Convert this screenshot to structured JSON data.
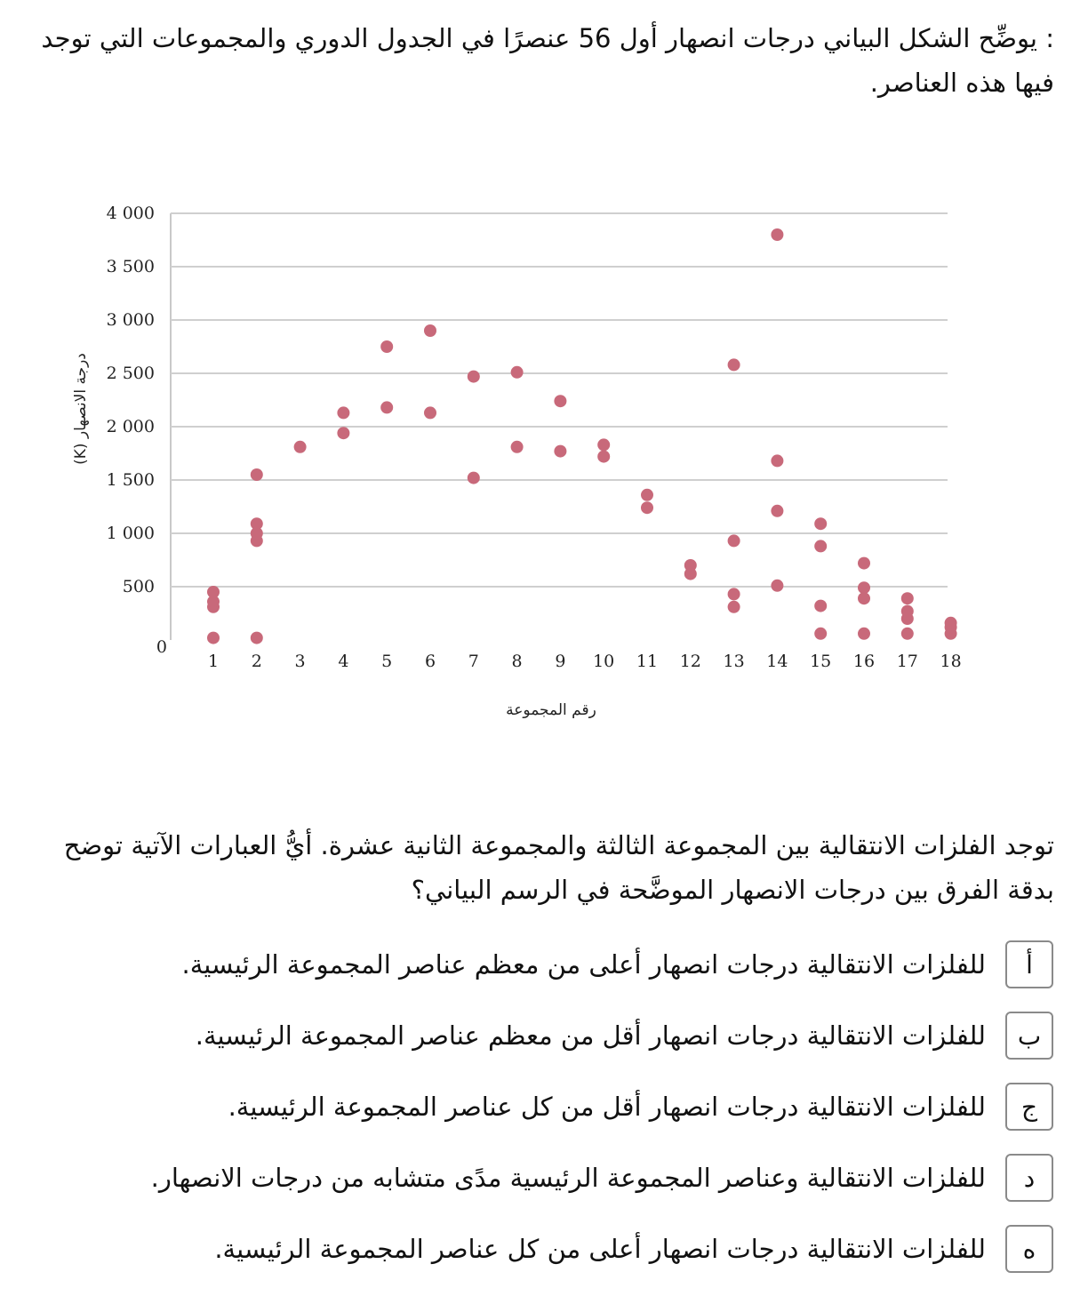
{
  "intro_text": ": يوضِّح الشكل البياني درجات انصهار أول 56 عنصرًا في الجدول الدوري والمجموعات التي توجد فيها هذه العناصر.",
  "question_text": "توجد الفلزات الانتقالية بين المجموعة الثالثة والمجموعة الثانية عشرة. أيُّ العبارات الآتية توضح بدقة الفرق بين درجات الانصهار الموضَّحة في الرسم البياني؟",
  "options": [
    {
      "letter": "أ",
      "text": "للفلزات الانتقالية درجات انصهار أعلى من معظم عناصر المجموعة الرئيسية."
    },
    {
      "letter": "ب",
      "text": "للفلزات الانتقالية درجات انصهار أقل من معظم عناصر المجموعة الرئيسية."
    },
    {
      "letter": "ج",
      "text": "للفلزات الانتقالية درجات انصهار أقل من كل عناصر المجموعة الرئيسية."
    },
    {
      "letter": "د",
      "text": "للفلزات الانتقالية وعناصر المجموعة الرئيسية مدًى متشابه من درجات الانصهار."
    },
    {
      "letter": "ه",
      "text": "للفلزات الانتقالية درجات انصهار أعلى من كل عناصر المجموعة الرئيسية."
    }
  ],
  "chart_data": {
    "type": "scatter",
    "xlabel": "رقم المجموعة",
    "ylabel": "درجة الانصهار (K)",
    "x_ticks": [
      "1",
      "2",
      "3",
      "4",
      "5",
      "6",
      "7",
      "8",
      "9",
      "10",
      "11",
      "12",
      "13",
      "14",
      "15",
      "16",
      "17",
      "18"
    ],
    "y_ticks": [
      "0",
      "500",
      "1 000",
      "1 500",
      "2 000",
      "2 500",
      "3 000",
      "3 500",
      "4 000"
    ],
    "ylim": [
      0,
      4000
    ],
    "xlim": [
      0.1,
      18
    ],
    "grid": "horizontal",
    "point_color": "#c8697a",
    "points": [
      {
        "x": 1,
        "y": 20
      },
      {
        "x": 1,
        "y": 310
      },
      {
        "x": 1,
        "y": 360
      },
      {
        "x": 1,
        "y": 450
      },
      {
        "x": 2,
        "y": 20
      },
      {
        "x": 2,
        "y": 930
      },
      {
        "x": 2,
        "y": 1000
      },
      {
        "x": 2,
        "y": 1090
      },
      {
        "x": 2,
        "y": 1550
      },
      {
        "x": 3,
        "y": 1810
      },
      {
        "x": 4,
        "y": 1940
      },
      {
        "x": 4,
        "y": 2130
      },
      {
        "x": 5,
        "y": 2180
      },
      {
        "x": 5,
        "y": 2750
      },
      {
        "x": 6,
        "y": 2130
      },
      {
        "x": 6,
        "y": 2900
      },
      {
        "x": 7,
        "y": 1520
      },
      {
        "x": 7,
        "y": 2470
      },
      {
        "x": 8,
        "y": 1810
      },
      {
        "x": 8,
        "y": 2510
      },
      {
        "x": 9,
        "y": 1770
      },
      {
        "x": 9,
        "y": 2240
      },
      {
        "x": 10,
        "y": 1720
      },
      {
        "x": 10,
        "y": 1830
      },
      {
        "x": 11,
        "y": 1240
      },
      {
        "x": 11,
        "y": 1360
      },
      {
        "x": 12,
        "y": 620
      },
      {
        "x": 12,
        "y": 700
      },
      {
        "x": 13,
        "y": 310
      },
      {
        "x": 13,
        "y": 430
      },
      {
        "x": 13,
        "y": 930
      },
      {
        "x": 13,
        "y": 2580
      },
      {
        "x": 14,
        "y": 510
      },
      {
        "x": 14,
        "y": 1210
      },
      {
        "x": 14,
        "y": 1680
      },
      {
        "x": 14,
        "y": 3800
      },
      {
        "x": 15,
        "y": 60
      },
      {
        "x": 15,
        "y": 320
      },
      {
        "x": 15,
        "y": 880
      },
      {
        "x": 15,
        "y": 1090
      },
      {
        "x": 16,
        "y": 60
      },
      {
        "x": 16,
        "y": 390
      },
      {
        "x": 16,
        "y": 490
      },
      {
        "x": 16,
        "y": 720
      },
      {
        "x": 17,
        "y": 60
      },
      {
        "x": 17,
        "y": 200
      },
      {
        "x": 17,
        "y": 270
      },
      {
        "x": 17,
        "y": 390
      },
      {
        "x": 18,
        "y": 60
      },
      {
        "x": 18,
        "y": 120
      },
      {
        "x": 18,
        "y": 160
      }
    ]
  }
}
